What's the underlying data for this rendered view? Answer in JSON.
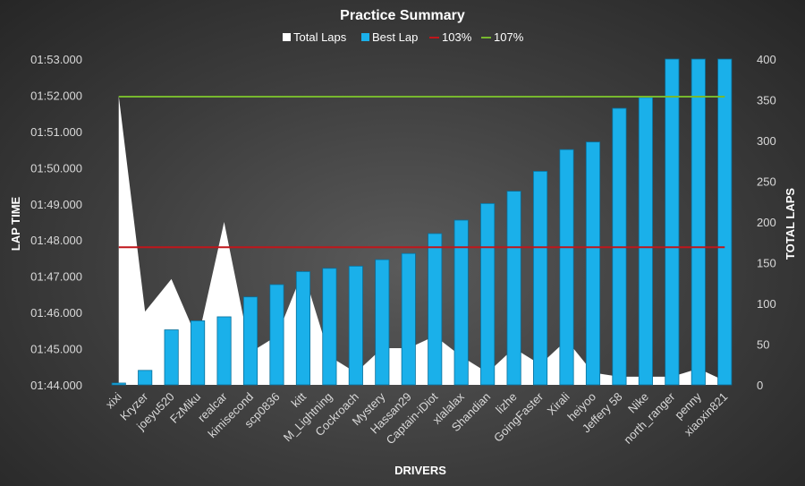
{
  "chart_data": {
    "type": "bar",
    "title": "Practice Summary",
    "xlabel": "DRIVERS",
    "ylabel": "LAP TIME",
    "y2label": "TOTAL LAPS",
    "categories": [
      "xixi",
      "Kryzer",
      "joeyu520",
      "FzMiku",
      "realcar",
      "kimisecond",
      "scp0836",
      "kitt",
      "M_Lightning",
      "Cockroach",
      "Mystery",
      "Hassan29",
      "Captain-iDiot",
      "xlalalax",
      "Shandian",
      "lizhe",
      "GoingFaster",
      "Xirali",
      "heiyoo",
      "Jeffery 58",
      "Nike",
      "north_ranger",
      "penny",
      "xiaoxin821"
    ],
    "y_ticks": [
      "01:44.000",
      "01:45.000",
      "01:46.000",
      "01:47.000",
      "01:48.000",
      "01:49.000",
      "01:50.000",
      "01:51.000",
      "01:52.000",
      "01:53.000"
    ],
    "y2_ticks": [
      "0",
      "50",
      "100",
      "150",
      "200",
      "250",
      "300",
      "350",
      "400"
    ],
    "ylim_seconds": [
      104,
      113
    ],
    "y2lim": [
      0,
      400
    ],
    "series": [
      {
        "name": "Total Laps",
        "type": "area",
        "axis": "secondary",
        "color": "#ffffff",
        "values": [
          355,
          90,
          130,
          55,
          200,
          40,
          60,
          140,
          35,
          15,
          45,
          45,
          60,
          35,
          15,
          45,
          25,
          55,
          15,
          10,
          10,
          10,
          20,
          5
        ]
      },
      {
        "name": "Best Lap",
        "type": "bar",
        "axis": "primary",
        "color": "#1ab0ea",
        "values": [
          "01:44.050",
          "01:44.400",
          "01:45.520",
          "01:45.770",
          "01:45.880",
          "01:46.430",
          "01:46.770",
          "01:47.130",
          "01:47.220",
          "01:47.280",
          "01:47.460",
          "01:47.630",
          "01:48.180",
          "01:48.550",
          "01:49.010",
          "01:49.350",
          "01:49.900",
          "01:50.500",
          "01:50.710",
          "01:51.640",
          "01:51.940",
          "01:53.000",
          "01:53.000",
          "01:53.000"
        ]
      },
      {
        "name": "103%",
        "type": "line",
        "axis": "primary",
        "color": "#c0161b",
        "value": "01:47.800"
      },
      {
        "name": "107%",
        "type": "line",
        "axis": "primary",
        "color": "#77b82e",
        "value": "01:51.960"
      }
    ],
    "legend_position": "top",
    "grid": false
  }
}
